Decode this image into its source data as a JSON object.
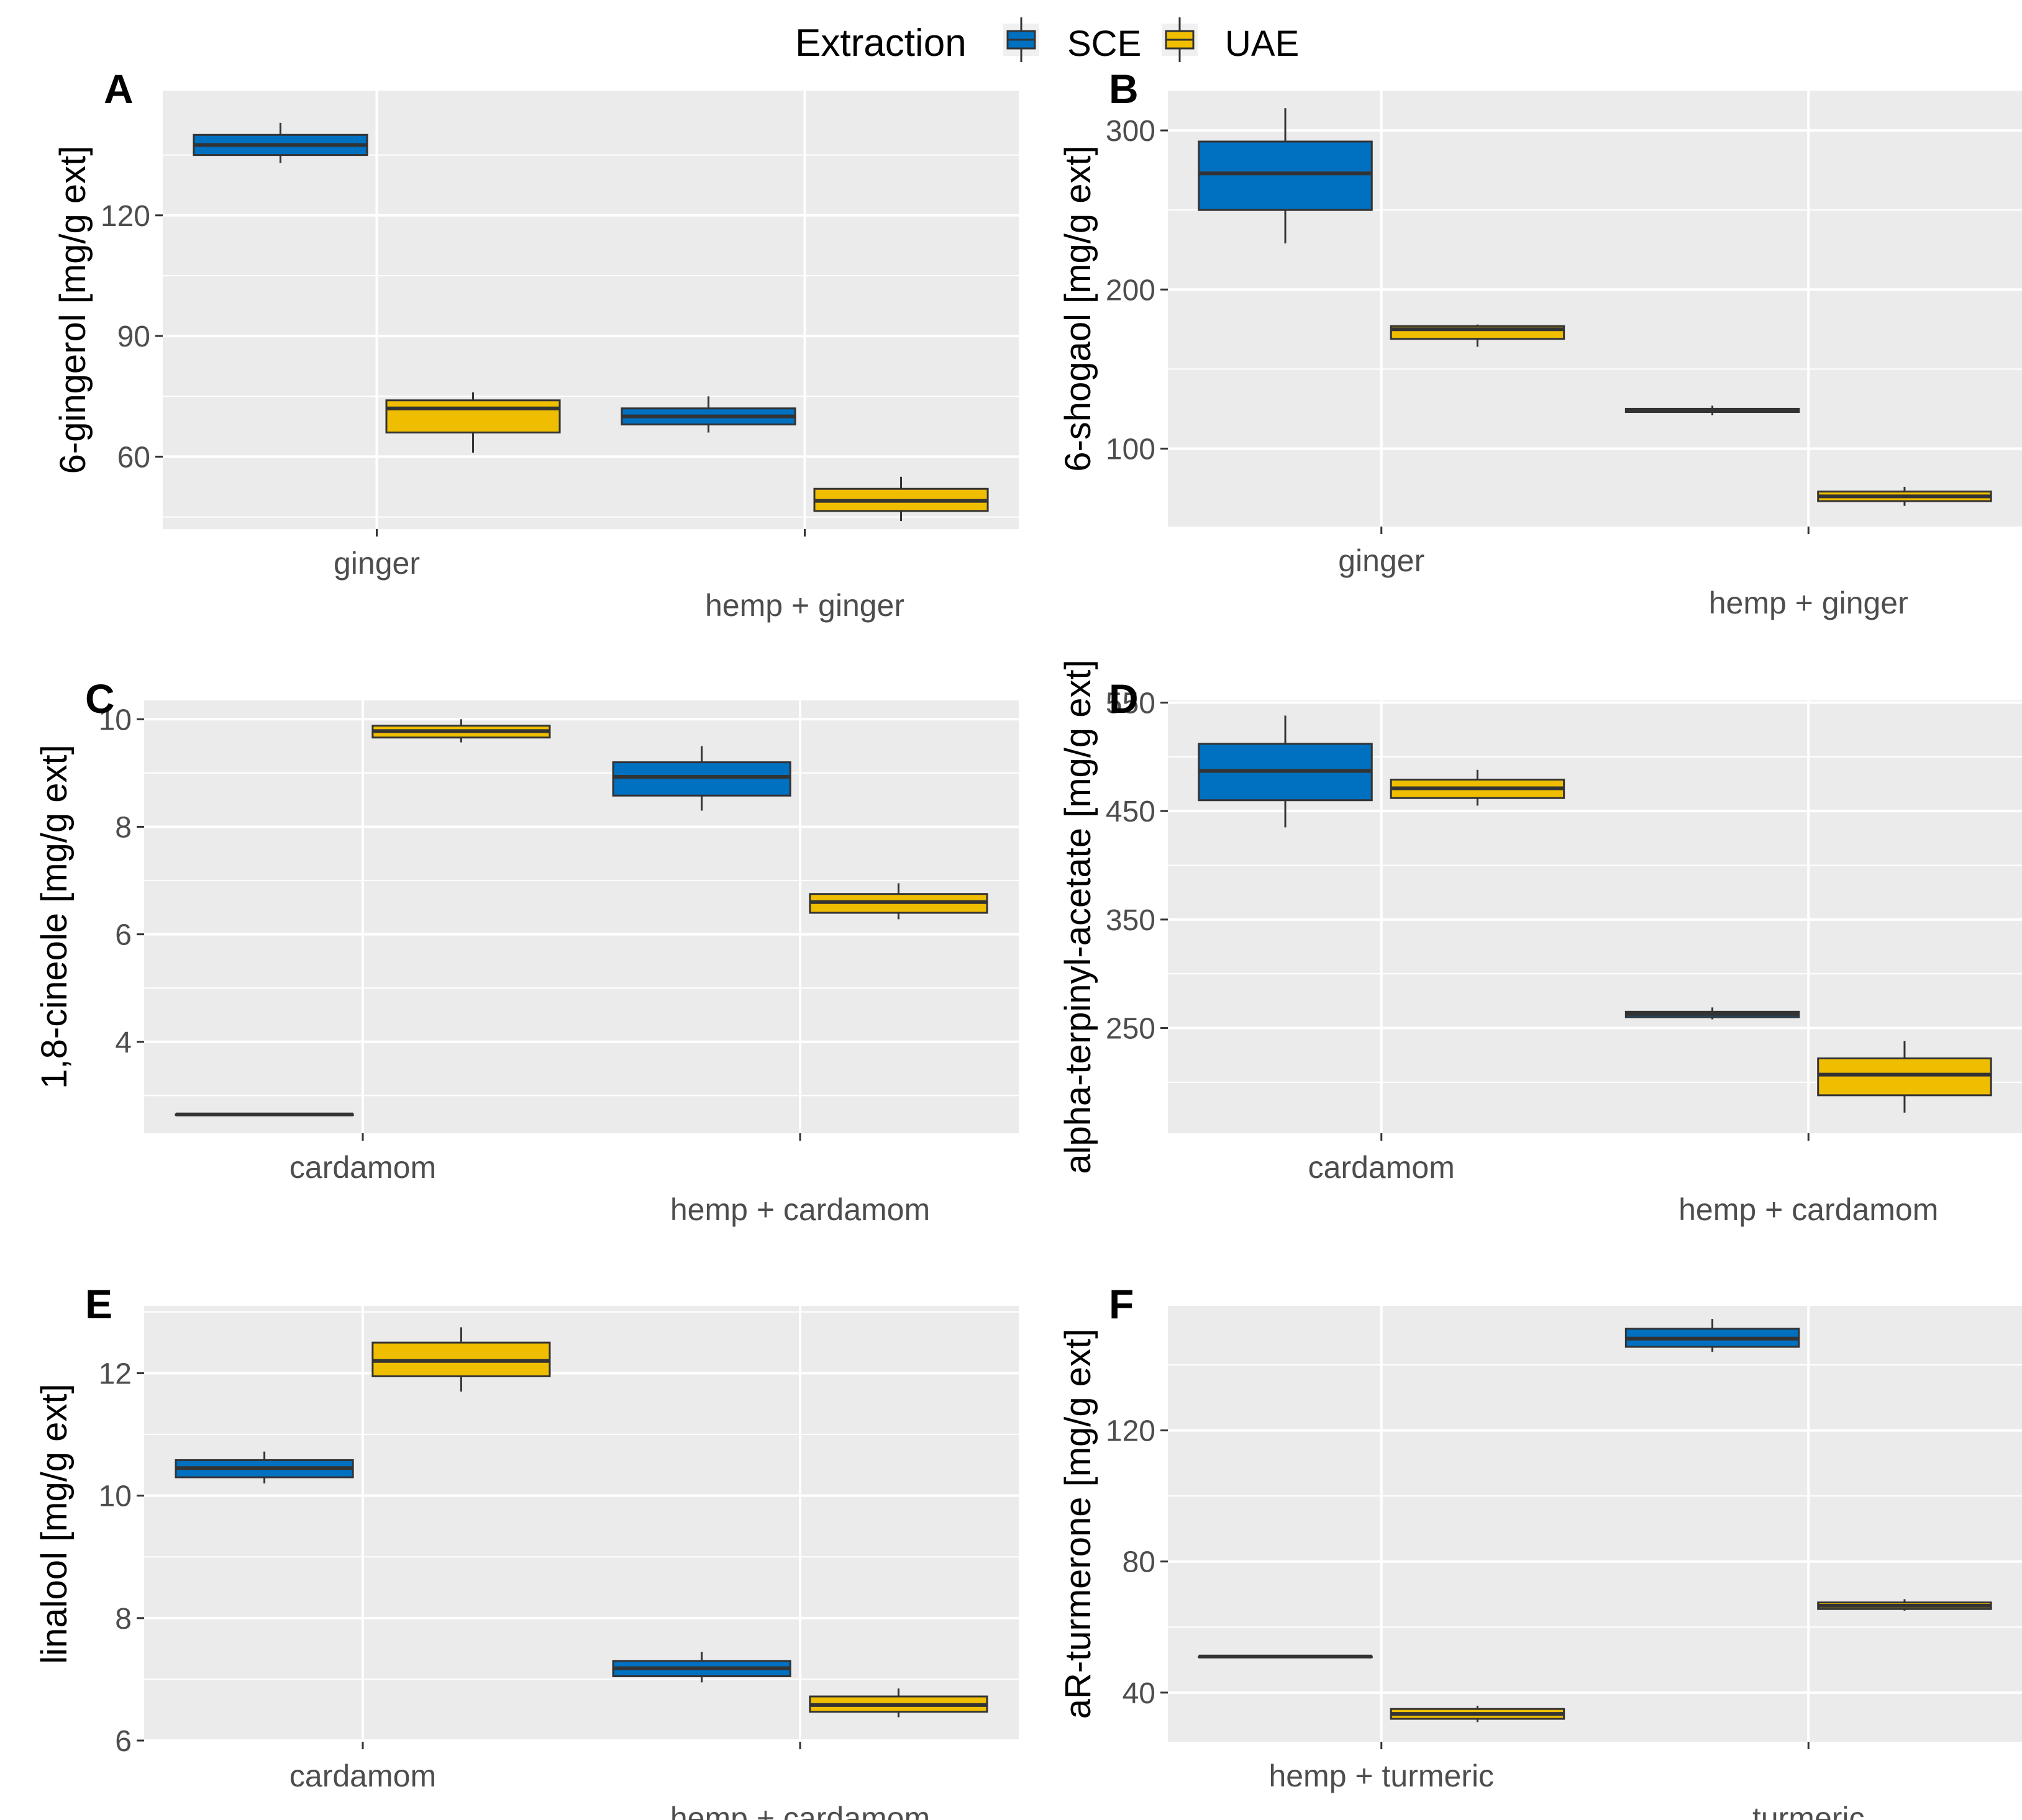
{
  "legend": {
    "title": "Extraction",
    "entries": [
      {
        "label": "SCE",
        "color": "#0070C0"
      },
      {
        "label": "UAE",
        "color": "#F0BE00"
      }
    ]
  },
  "chart_data": [
    {
      "panel": "A",
      "type": "boxplot",
      "ylabel": "6-gingerol [mg/g ext]",
      "ylim": [
        42,
        151
      ],
      "yticks": [
        60,
        90,
        120
      ],
      "categories": [
        "ginger",
        "hemp + ginger"
      ],
      "series": [
        {
          "name": "SCE",
          "boxes": [
            {
              "category": "ginger",
              "min": 133,
              "q1": 135,
              "median": 137.5,
              "q3": 140,
              "max": 143
            },
            {
              "category": "hemp + ginger",
              "min": 66,
              "q1": 68,
              "median": 70,
              "q3": 72,
              "max": 75
            }
          ]
        },
        {
          "name": "UAE",
          "boxes": [
            {
              "category": "ginger",
              "min": 61,
              "q1": 66,
              "median": 72,
              "q3": 74,
              "max": 76
            },
            {
              "category": "hemp + ginger",
              "min": 44,
              "q1": 46.5,
              "median": 49,
              "q3": 52,
              "max": 55
            }
          ]
        }
      ]
    },
    {
      "panel": "B",
      "type": "boxplot",
      "ylabel": "6-shogaol [mg/g ext]",
      "ylim": [
        51,
        325
      ],
      "yticks": [
        100,
        200,
        300
      ],
      "categories": [
        "ginger",
        "hemp + ginger"
      ],
      "series": [
        {
          "name": "SCE",
          "boxes": [
            {
              "category": "ginger",
              "min": 229,
              "q1": 250,
              "median": 273,
              "q3": 293,
              "max": 314
            },
            {
              "category": "hemp + ginger",
              "min": 121,
              "q1": 123,
              "median": 124,
              "q3": 125,
              "max": 127
            }
          ]
        },
        {
          "name": "UAE",
          "boxes": [
            {
              "category": "ginger",
              "min": 164,
              "q1": 169,
              "median": 175,
              "q3": 177,
              "max": 178
            },
            {
              "category": "hemp + ginger",
              "min": 64,
              "q1": 67,
              "median": 70,
              "q3": 73,
              "max": 76
            }
          ]
        }
      ]
    },
    {
      "panel": "C",
      "type": "boxplot",
      "ylabel": "1,8-cineole [mg/g ext]",
      "ylim": [
        2.3,
        10.35
      ],
      "yticks": [
        4,
        6,
        8,
        10
      ],
      "categories": [
        "cardamom",
        "hemp + cardamom"
      ],
      "series": [
        {
          "name": "SCE",
          "boxes": [
            {
              "category": "cardamom",
              "min": 2.65,
              "q1": 2.65,
              "median": 2.65,
              "q3": 2.65,
              "max": 2.65
            },
            {
              "category": "hemp + cardamom",
              "min": 8.3,
              "q1": 8.58,
              "median": 8.93,
              "q3": 9.2,
              "max": 9.5
            }
          ]
        },
        {
          "name": "UAE",
          "boxes": [
            {
              "category": "cardamom",
              "min": 9.57,
              "q1": 9.66,
              "median": 9.78,
              "q3": 9.88,
              "max": 10.0
            },
            {
              "category": "hemp + cardamom",
              "min": 6.28,
              "q1": 6.4,
              "median": 6.6,
              "q3": 6.75,
              "max": 6.95
            }
          ]
        }
      ]
    },
    {
      "panel": "D",
      "type": "boxplot",
      "ylabel": "alpha-terpinyl-acetate [mg/g ext]",
      "ylim": [
        153,
        552
      ],
      "yticks": [
        250,
        350,
        450,
        550
      ],
      "categories": [
        "cardamom",
        "hemp + cardamom"
      ],
      "series": [
        {
          "name": "SCE",
          "boxes": [
            {
              "category": "cardamom",
              "min": 435,
              "q1": 460,
              "median": 487,
              "q3": 512,
              "max": 538
            },
            {
              "category": "hemp + cardamom",
              "min": 258,
              "q1": 260,
              "median": 263,
              "q3": 265,
              "max": 269
            }
          ]
        },
        {
          "name": "UAE",
          "boxes": [
            {
              "category": "cardamom",
              "min": 455,
              "q1": 462,
              "median": 471,
              "q3": 479,
              "max": 488
            },
            {
              "category": "hemp + cardamom",
              "min": 172,
              "q1": 188,
              "median": 207,
              "q3": 222,
              "max": 238
            }
          ]
        }
      ]
    },
    {
      "panel": "E",
      "type": "boxplot",
      "ylabel": "linalool [mg/g ext]",
      "ylim": [
        5.98,
        13.1
      ],
      "yticks": [
        6,
        8,
        10,
        12
      ],
      "categories": [
        "cardamom",
        "hemp + cardamom"
      ],
      "series": [
        {
          "name": "SCE",
          "boxes": [
            {
              "category": "cardamom",
              "min": 10.2,
              "q1": 10.3,
              "median": 10.45,
              "q3": 10.58,
              "max": 10.72
            },
            {
              "category": "hemp + cardamom",
              "min": 6.95,
              "q1": 7.05,
              "median": 7.18,
              "q3": 7.3,
              "max": 7.45
            }
          ]
        },
        {
          "name": "UAE",
          "boxes": [
            {
              "category": "cardamom",
              "min": 11.7,
              "q1": 11.95,
              "median": 12.2,
              "q3": 12.5,
              "max": 12.75
            },
            {
              "category": "hemp + cardamom",
              "min": 6.38,
              "q1": 6.47,
              "median": 6.58,
              "q3": 6.72,
              "max": 6.85
            }
          ]
        }
      ]
    },
    {
      "panel": "F",
      "type": "boxplot",
      "ylabel": "aR-turmerone [mg/g ext]",
      "ylim": [
        25,
        158
      ],
      "yticks": [
        40,
        80,
        120
      ],
      "categories": [
        "hemp + turmeric",
        "turmeric"
      ],
      "series": [
        {
          "name": "SCE",
          "boxes": [
            {
              "category": "hemp + turmeric",
              "min": 51,
              "q1": 51,
              "median": 51,
              "q3": 51,
              "max": 51
            },
            {
              "category": "turmeric",
              "min": 144,
              "q1": 145.5,
              "median": 148,
              "q3": 151,
              "max": 154
            }
          ]
        },
        {
          "name": "UAE",
          "boxes": [
            {
              "category": "hemp + turmeric",
              "min": 31,
              "q1": 32,
              "median": 33.5,
              "q3": 35,
              "max": 36
            },
            {
              "category": "turmeric",
              "min": 65,
              "q1": 65.5,
              "median": 66.5,
              "q3": 67.5,
              "max": 68.5
            }
          ]
        }
      ]
    }
  ]
}
